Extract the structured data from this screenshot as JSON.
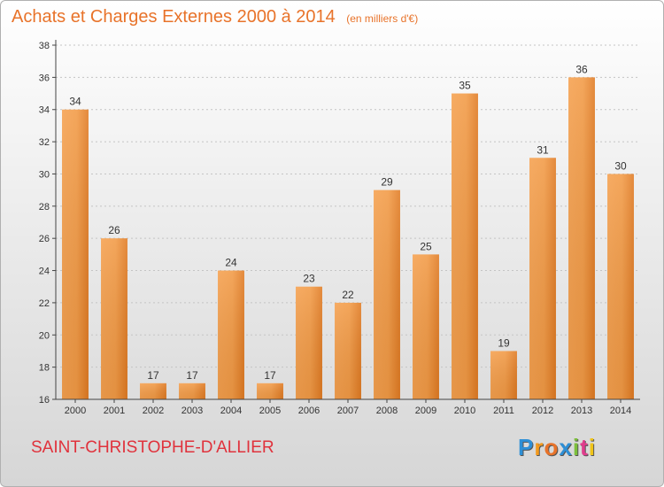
{
  "title": "Achats et Charges Externes 2000 à 2014",
  "unit": "(en milliers d'€)",
  "commune": "SAINT-CHRISTOPHE-D'ALLIER",
  "logo": {
    "letters": [
      "P",
      "r",
      "o",
      "x",
      "i",
      "t",
      "i"
    ],
    "colors": [
      "#2d8fd6",
      "#f39a1e",
      "#e8732a",
      "#2d8fd6",
      "#7cbf3c",
      "#e03c8c",
      "#f0c419"
    ]
  },
  "colors": {
    "bar": "#e8832a",
    "bar_light": "#f5a04e",
    "title": "#e8732a",
    "commune": "#e0323c"
  },
  "chart_data": {
    "type": "bar",
    "categories": [
      "2000",
      "2001",
      "2002",
      "2003",
      "2004",
      "2005",
      "2006",
      "2007",
      "2008",
      "2009",
      "2010",
      "2011",
      "2012",
      "2013",
      "2014"
    ],
    "values": [
      34,
      26,
      17,
      17,
      24,
      17,
      23,
      22,
      29,
      25,
      35,
      19,
      31,
      36,
      30
    ],
    "data_labels": [
      "34",
      "26",
      "17",
      "17",
      "24",
      "17",
      "23",
      "22",
      "29",
      "25",
      "35",
      "19",
      "31",
      "36",
      "30"
    ],
    "ylim": [
      16,
      38
    ],
    "yticks": [
      "16",
      "18",
      "20",
      "22",
      "24",
      "26",
      "28",
      "30",
      "32",
      "34",
      "36",
      "38"
    ],
    "grid": "horizontal dashed",
    "xlabel": "",
    "ylabel": ""
  }
}
